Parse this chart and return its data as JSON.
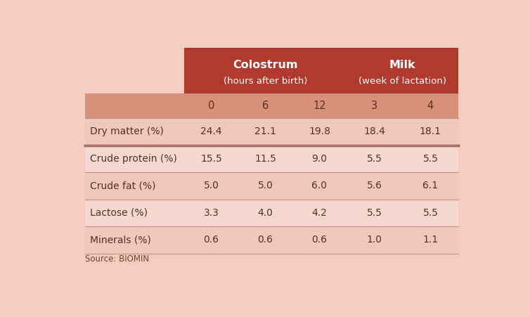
{
  "title_left": "Colostrum",
  "title_left_sub": "(hours after birth)",
  "title_right": "Milk",
  "title_right_sub": "(week of lactation)",
  "col_headers": [
    "",
    "0",
    "6",
    "12",
    "3",
    "4"
  ],
  "rows": [
    [
      "Dry matter (%)",
      "24.4",
      "21.1",
      "19.8",
      "18.4",
      "18.1"
    ],
    [
      "Crude protein (%)",
      "15.5",
      "11.5",
      "9.0",
      "5.5",
      "5.5"
    ],
    [
      "Crude fat (%)",
      "5.0",
      "5.0",
      "6.0",
      "5.6",
      "6.1"
    ],
    [
      "Lactose (%)",
      "3.3",
      "4.0",
      "4.2",
      "5.5",
      "5.5"
    ],
    [
      "Minerals (%)",
      "0.6",
      "0.6",
      "0.6",
      "1.0",
      "1.1"
    ]
  ],
  "source_text": "Source: BIOMIN",
  "header_bg_color": "#b03a2e",
  "header_text_color": "#ffffff",
  "subheader_bg_color": "#d8907a",
  "row_colors": [
    "#f0c8bc",
    "#f5d8d0",
    "#f0c8bc",
    "#f5d8d0",
    "#f0c8bc"
  ],
  "separator_color": "#8b5a50",
  "thin_line_color": "#c8907a",
  "text_color": "#5a3020",
  "bg_color": "#f5cdc0",
  "source_color": "#7a4030"
}
